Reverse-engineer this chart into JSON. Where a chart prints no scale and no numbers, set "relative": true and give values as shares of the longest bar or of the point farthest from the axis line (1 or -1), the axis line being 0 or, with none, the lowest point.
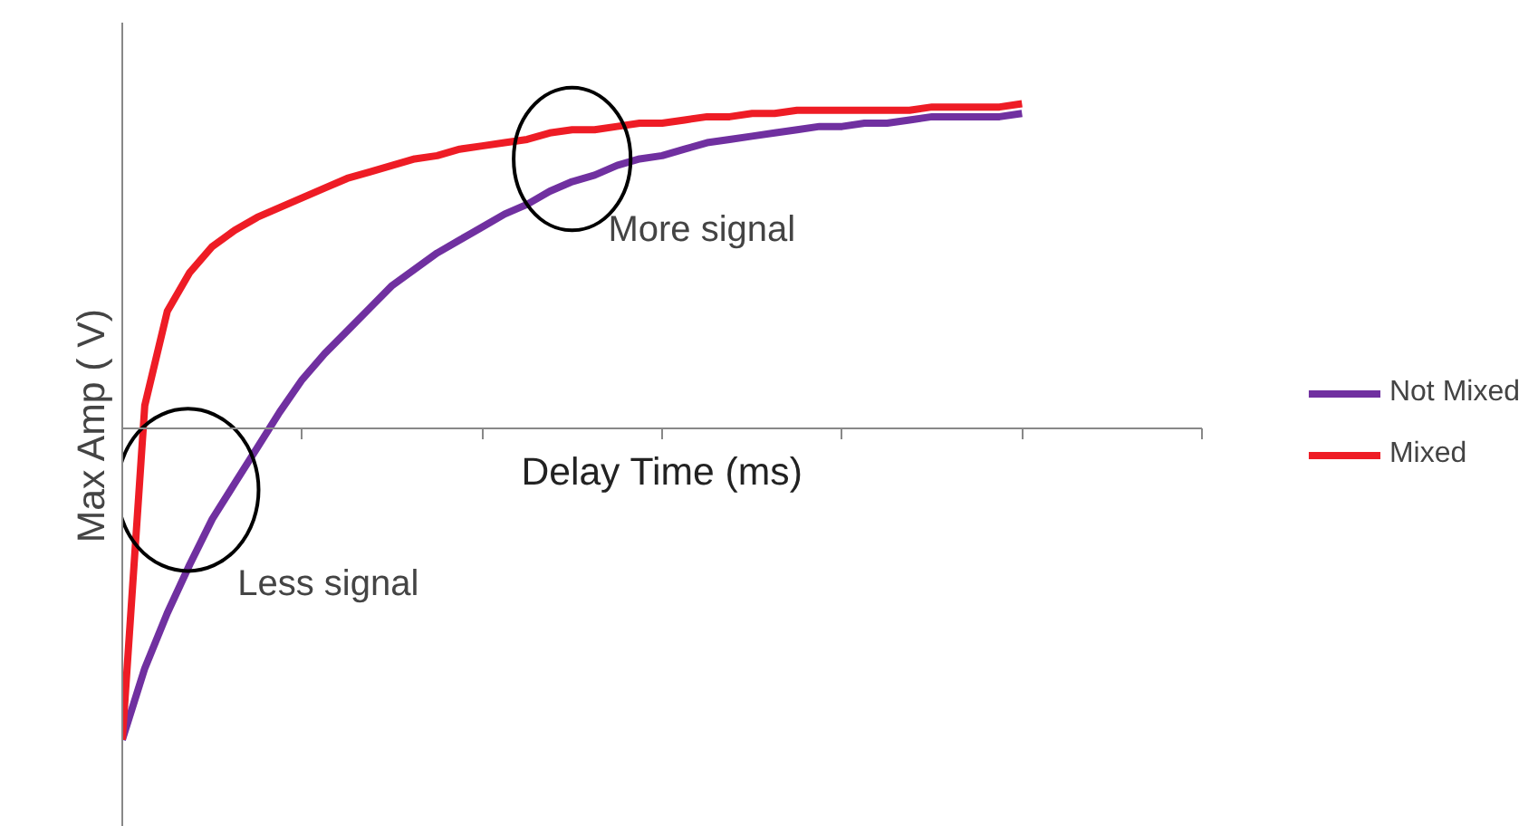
{
  "chart_data": {
    "type": "line",
    "relative": true,
    "xlabel": "Delay Time (ms)",
    "ylabel": "Max Amp ( V)",
    "categories": [
      null,
      null,
      null,
      null,
      null,
      null,
      null,
      null,
      null,
      null,
      null,
      null,
      null,
      null,
      null,
      null,
      null,
      null,
      null,
      null,
      null,
      null,
      null,
      null,
      null,
      null,
      null,
      null,
      null,
      null,
      null,
      null,
      null,
      null,
      null,
      null,
      null,
      null,
      null,
      null,
      null
    ],
    "series": [
      {
        "name": "Not Mixed",
        "color": "#7030a0",
        "values": [
          -0.96,
          -0.74,
          -0.57,
          -0.42,
          -0.28,
          -0.17,
          -0.06,
          0.05,
          0.15,
          0.23,
          0.3,
          0.37,
          0.44,
          0.49,
          0.54,
          0.58,
          0.62,
          0.66,
          0.69,
          0.73,
          0.76,
          0.78,
          0.81,
          0.83,
          0.84,
          0.86,
          0.88,
          0.89,
          0.9,
          0.91,
          0.92,
          0.93,
          0.93,
          0.94,
          0.94,
          0.95,
          0.96,
          0.96,
          0.96,
          0.96,
          0.97
        ]
      },
      {
        "name": "Mixed",
        "color": "#ee1c25",
        "values": [
          -0.96,
          0.07,
          0.36,
          0.48,
          0.56,
          0.61,
          0.65,
          0.68,
          0.71,
          0.74,
          0.77,
          0.79,
          0.81,
          0.83,
          0.84,
          0.86,
          0.87,
          0.88,
          0.89,
          0.91,
          0.92,
          0.92,
          0.93,
          0.94,
          0.94,
          0.95,
          0.96,
          0.96,
          0.97,
          0.97,
          0.98,
          0.98,
          0.98,
          0.98,
          0.98,
          0.98,
          0.99,
          0.99,
          0.99,
          0.99,
          1
        ]
      }
    ],
    "annotations": [
      "More signal",
      "Less signal"
    ],
    "legend": "right",
    "marker": "none",
    "line_style": "solid"
  }
}
